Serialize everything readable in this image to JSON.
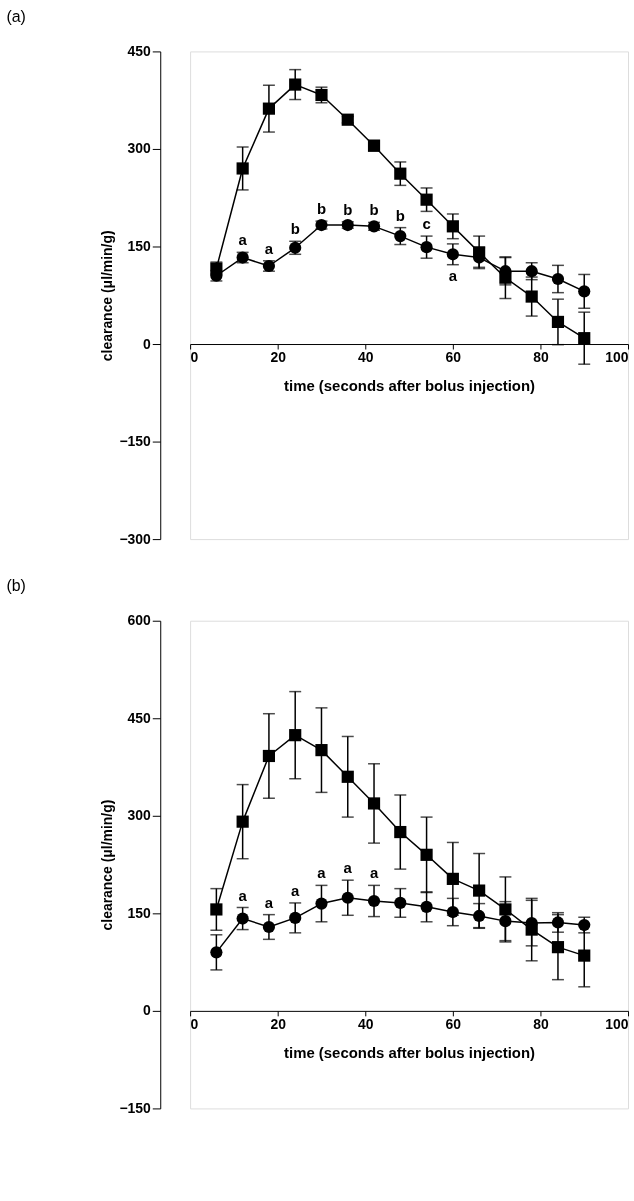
{
  "chart_data": [
    {
      "type": "line",
      "title": "(a)",
      "xlabel": "time (seconds after bolus injection)",
      "ylabel": "clearance (μl/min/g)",
      "xlim": [
        0,
        100
      ],
      "xticks": [
        0,
        20,
        40,
        60,
        80,
        100
      ],
      "ylim": [
        -300,
        450
      ],
      "yticks": [
        -300,
        -150,
        0,
        150,
        300,
        450
      ],
      "grid": false,
      "line_style": "solid",
      "series": [
        {
          "color": "#000000",
          "marker": "square",
          "x": [
            6,
            12,
            18,
            24,
            30,
            36,
            42,
            48,
            54,
            60,
            66,
            72,
            78,
            84,
            90
          ],
          "values": [
            116,
            270,
            362,
            399,
            383,
            345,
            305,
            262,
            222,
            181,
            141,
            102,
            73,
            34,
            9
          ],
          "errors": [
            10,
            33,
            36,
            23,
            12,
            5,
            8,
            18,
            18,
            19,
            25,
            32,
            30,
            35,
            40
          ]
        },
        {
          "color": "#000000",
          "marker": "circle",
          "x": [
            6,
            12,
            18,
            24,
            30,
            36,
            42,
            48,
            54,
            60,
            66,
            72,
            78,
            84,
            90
          ],
          "values": [
            105,
            133,
            120,
            148,
            183,
            183,
            181,
            166,
            149,
            138,
            133,
            112,
            112,
            100,
            81
          ],
          "errors": [
            8,
            8,
            8,
            10,
            6,
            5,
            6,
            13,
            17,
            16,
            15,
            21,
            13,
            21,
            26
          ],
          "value_labels": [
            null,
            "a",
            "a",
            "b",
            "b",
            "b",
            "b",
            "b",
            "c",
            "a",
            null,
            null,
            null,
            null,
            null
          ]
        }
      ]
    },
    {
      "type": "line",
      "title": "(b)",
      "xlabel": "time (seconds after bolus injection)",
      "ylabel": "clearance (μl/min/g)",
      "xlim": [
        0,
        100
      ],
      "xticks": [
        0,
        20,
        40,
        60,
        80,
        100
      ],
      "ylim": [
        -150,
        600
      ],
      "yticks": [
        -150,
        0,
        150,
        300,
        450,
        600
      ],
      "grid": false,
      "line_style": "solid",
      "series": [
        {
          "color": "#000000",
          "marker": "square",
          "x": [
            6,
            12,
            18,
            24,
            30,
            36,
            42,
            48,
            54,
            60,
            66,
            72,
            78,
            84,
            90
          ],
          "values": [
            156,
            291,
            392,
            424,
            401,
            360,
            319,
            275,
            240,
            203,
            185,
            156,
            125,
            98,
            85
          ],
          "errors": [
            32,
            57,
            65,
            67,
            65,
            62,
            61,
            57,
            58,
            56,
            57,
            50,
            48,
            50,
            48
          ]
        },
        {
          "color": "#000000",
          "marker": "circle",
          "x": [
            6,
            12,
            18,
            24,
            30,
            36,
            42,
            48,
            54,
            60,
            66,
            72,
            78,
            84,
            90
          ],
          "values": [
            90,
            142,
            129,
            143,
            165,
            174,
            169,
            166,
            160,
            152,
            146,
            138,
            135,
            136,
            132
          ],
          "errors": [
            27,
            17,
            19,
            23,
            28,
            27,
            24,
            22,
            23,
            21,
            19,
            30,
            35,
            15,
            12
          ],
          "value_labels": [
            null,
            "a",
            "a",
            "a",
            "a",
            "a",
            "a",
            null,
            null,
            null,
            null,
            null,
            null,
            null,
            null
          ]
        }
      ]
    }
  ]
}
